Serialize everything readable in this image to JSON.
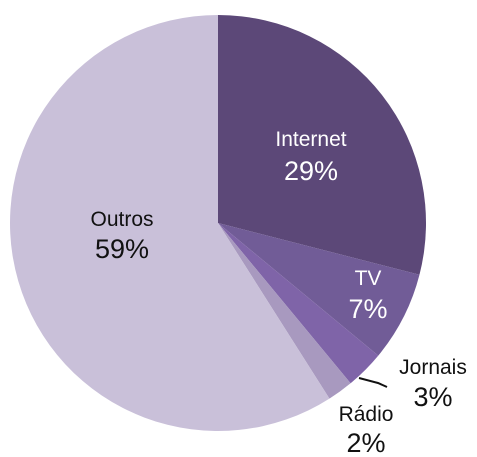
{
  "chart_data": {
    "type": "pie",
    "slices": [
      {
        "label": "Internet",
        "value": 29,
        "display": "29%",
        "color": "#5c4878",
        "label_color": "#ffffff"
      },
      {
        "label": "TV",
        "value": 7,
        "display": "7%",
        "color": "#715c97",
        "label_color": "#ffffff"
      },
      {
        "label": "Jornais",
        "value": 3,
        "display": "3%",
        "color": "#7f64a8",
        "label_color": "#111111"
      },
      {
        "label": "Rádio",
        "value": 2,
        "display": "2%",
        "color": "#a899bf",
        "label_color": "#111111"
      },
      {
        "label": "Outros",
        "value": 59,
        "display": "59%",
        "color": "#c9c0d9",
        "label_color": "#111111"
      }
    ]
  }
}
